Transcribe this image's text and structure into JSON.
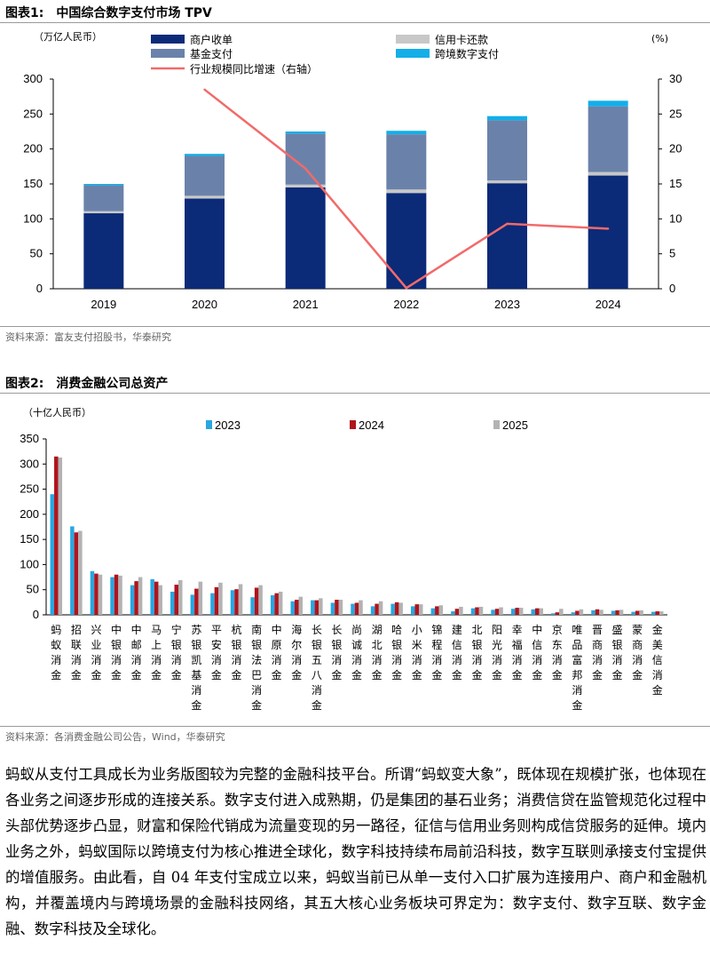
{
  "figure1": {
    "label": "图表1:",
    "title": "中国综合数字支付市场 TPV",
    "left_unit": "（万亿人民币）",
    "right_unit": "(%)",
    "source": "资料来源：富友支付招股书，华泰研究"
  },
  "figure2": {
    "label": "图表2:",
    "title": "消费金融公司总资产",
    "left_unit": "（十亿人民币）",
    "source": "资料来源：各消费金融公司公告，Wind，华泰研究"
  },
  "paragraph": "蚂蚁从支付工具成长为业务版图较为完整的金融科技平台。所谓“蚂蚁变大象”，既体现在规模扩张，也体现在各业务之间逐步形成的连接关系。数字支付进入成熟期，仍是集团的基石业务；消费信贷在监管规范化过程中头部优势逐步凸显，财富和保险代销成为流量变现的另一路径，征信与信用业务则构成信贷服务的延伸。境内业务之外，蚂蚁国际以跨境支付为核心推进全球化，数字科技持续布局前沿科技，数字互联则承接支付宝提供的增值服务。由此看，自 04 年支付宝成立以来，蚂蚁当前已从单一支付入口扩展为连接用户、商户和金融机构，并覆盖境内与跨境场景的金融科技网络，其五大核心业务板块可界定为：数字支付、数字互联、数字金融、数字科技及全球化。",
  "chart_data": [
    {
      "type": "bar",
      "stacked": true,
      "categories": [
        "2019",
        "2020",
        "2021",
        "2022",
        "2023",
        "2024"
      ],
      "series": [
        {
          "name": "商户收单",
          "values": [
            108,
            129,
            145,
            137,
            151,
            162
          ],
          "color": "#0b2a78"
        },
        {
          "name": "信用卡还款",
          "values": [
            3,
            4,
            4,
            5,
            4,
            5
          ],
          "color": "#c8c8c8"
        },
        {
          "name": "基金支付",
          "values": [
            37,
            57,
            73,
            79,
            86,
            94
          ],
          "color": "#6a82aa"
        },
        {
          "name": "跨境数字支付",
          "values": [
            2,
            3,
            3,
            5,
            6,
            8
          ],
          "color": "#14aee8"
        }
      ],
      "line_series": {
        "name": "行业规模同比增速（右轴）",
        "x": [
          "2020",
          "2021",
          "2022",
          "2023",
          "2024"
        ],
        "values": [
          28.5,
          17.2,
          0.1,
          9.3,
          8.6
        ],
        "color": "#f26a6a"
      },
      "ylim": [
        0,
        300
      ],
      "yticks": [
        0,
        50,
        100,
        150,
        200,
        250,
        300
      ],
      "y2lim": [
        0,
        30
      ],
      "y2ticks": [
        0,
        5,
        10,
        15,
        20,
        25,
        30
      ],
      "legend": "top"
    },
    {
      "type": "bar",
      "categories": [
        "蚂蚁消金",
        "招联消金",
        "兴业消金",
        "中银消金",
        "中邮消金",
        "马上消金",
        "宁银消金",
        "苏银凯基消金",
        "平安消金",
        "杭银消金",
        "南银法巴消金",
        "中原消金",
        "海尔消金",
        "长银五八消金",
        "长银消金",
        "尚诚消金",
        "湖北消金",
        "哈银消金",
        "小米消金",
        "锦程消金",
        "建信消金",
        "北银消金",
        "阳光消金",
        "幸福消金",
        "中信消金",
        "京东消金",
        "唯品富邦消金",
        "晋商消金",
        "盛银消金",
        "蒙商消金",
        "金美信消金"
      ],
      "series": [
        {
          "name": "2023",
          "color": "#2aa6e0",
          "values": [
            240,
            176,
            87,
            75,
            59,
            71,
            46,
            40,
            43,
            49,
            35,
            39,
            27,
            29,
            24,
            22,
            17,
            22,
            17,
            13,
            7,
            13,
            10,
            12,
            11,
            3,
            5,
            9,
            8,
            6,
            6
          ]
        },
        {
          "name": "2024",
          "color": "#b0141c",
          "values": [
            315,
            164,
            82,
            80,
            67,
            66,
            60,
            52,
            55,
            51,
            54,
            43,
            30,
            29,
            30,
            24,
            22,
            25,
            21,
            17,
            12,
            15,
            12,
            14,
            13,
            5,
            8,
            11,
            9,
            8,
            7
          ]
        },
        {
          "name": "2025",
          "color": "#b3b3b3",
          "values": [
            313,
            167,
            80,
            78,
            75,
            59,
            69,
            66,
            64,
            61,
            59,
            46,
            36,
            33,
            30,
            29,
            27,
            24,
            21,
            19,
            16,
            16,
            15,
            14,
            13,
            12,
            11,
            10,
            10,
            9,
            7
          ]
        }
      ],
      "ylim": [
        0,
        350
      ],
      "yticks": [
        0,
        50,
        100,
        150,
        200,
        250,
        300,
        350
      ],
      "legend": "top"
    }
  ]
}
